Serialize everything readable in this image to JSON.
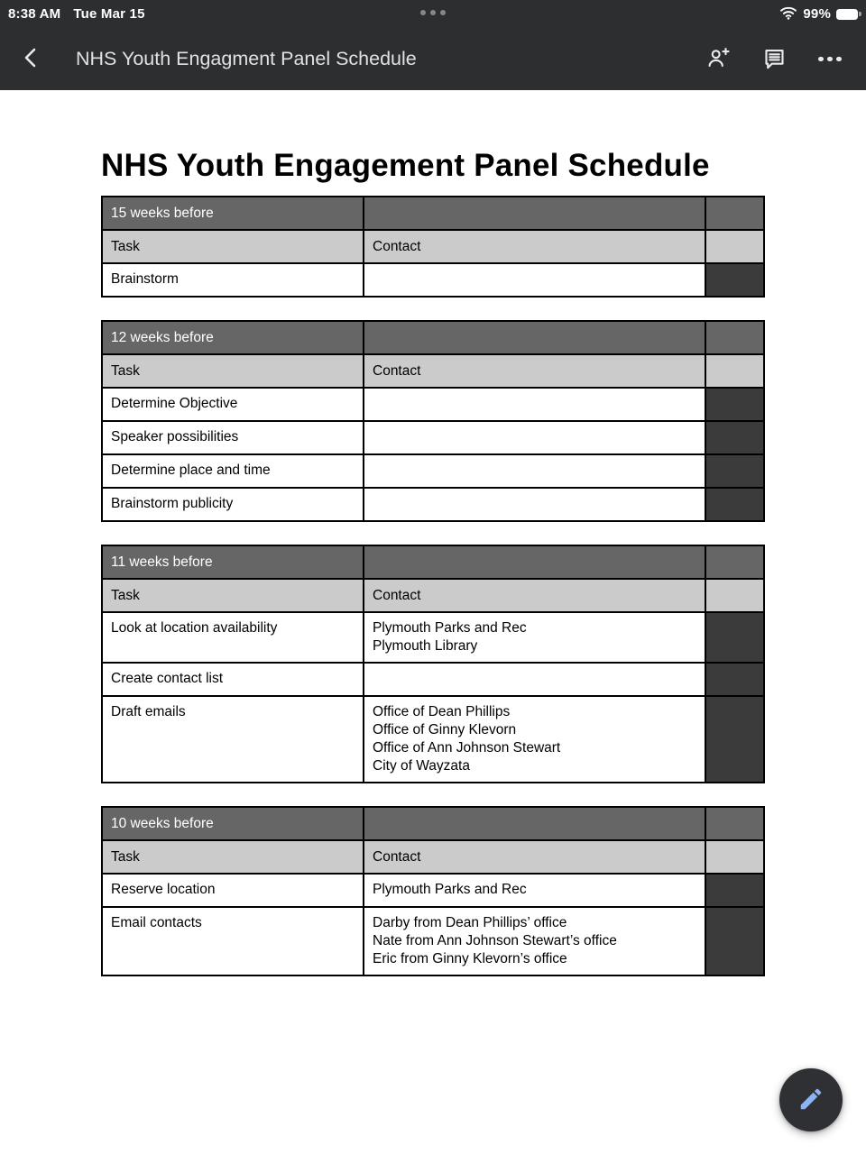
{
  "status_bar": {
    "time": "8:38 AM",
    "date": "Tue Mar 15",
    "battery_percent": "99%",
    "wifi_icon": "wifi-full-icon",
    "battery_icon": "battery-full-icon",
    "multitask_indicator": "three-dots"
  },
  "toolbar": {
    "back_icon": "chevron-left-icon",
    "title": "NHS Youth Engagment Panel Schedule",
    "share_icon": "person-add-icon",
    "comments_icon": "comment-icon",
    "overflow_icon": "more-horizontal-icon"
  },
  "document": {
    "title": "NHS Youth Engagement Panel Schedule",
    "tables": [
      {
        "period": "15 weeks before",
        "task_label": "Task",
        "contact_label": "Contact",
        "rows": [
          {
            "task": "Brainstorm",
            "contact": []
          }
        ]
      },
      {
        "period": "12 weeks before",
        "task_label": "Task",
        "contact_label": "Contact",
        "rows": [
          {
            "task": "Determine Objective",
            "contact": []
          },
          {
            "task": "Speaker possibilities",
            "contact": []
          },
          {
            "task": "Determine place and time",
            "contact": []
          },
          {
            "task": "Brainstorm publicity",
            "contact": []
          }
        ]
      },
      {
        "period": "11 weeks before",
        "task_label": "Task",
        "contact_label": "Contact",
        "rows": [
          {
            "task": "Look at location availability",
            "contact": [
              "Plymouth Parks and Rec",
              "Plymouth Library"
            ]
          },
          {
            "task": "Create contact list",
            "contact": []
          },
          {
            "task": "Draft emails",
            "contact": [
              "Office of Dean Phillips",
              "Office of Ginny Klevorn",
              "Office of Ann Johnson Stewart",
              "City of Wayzata"
            ]
          }
        ]
      },
      {
        "period": "10 weeks before",
        "task_label": "Task",
        "contact_label": "Contact",
        "rows": [
          {
            "task": "Reserve location",
            "contact": [
              "Plymouth Parks and Rec"
            ]
          },
          {
            "task": "Email contacts",
            "contact": [
              "Darby from Dean Phillips’ office",
              "Nate from Ann Johnson Stewart’s office",
              "Eric from Ginny Klevorn’s office"
            ]
          }
        ]
      }
    ]
  },
  "fab": {
    "icon": "pencil-icon",
    "icon_color": "#8ab4f8",
    "background": "#2f3033"
  },
  "colors": {
    "header_bar": "#2d2e30",
    "table_period_row": "#666666",
    "table_subhead_row": "#cbcbcb",
    "table_marker_cell": "#3b3b3b",
    "table_border": "#000000"
  }
}
